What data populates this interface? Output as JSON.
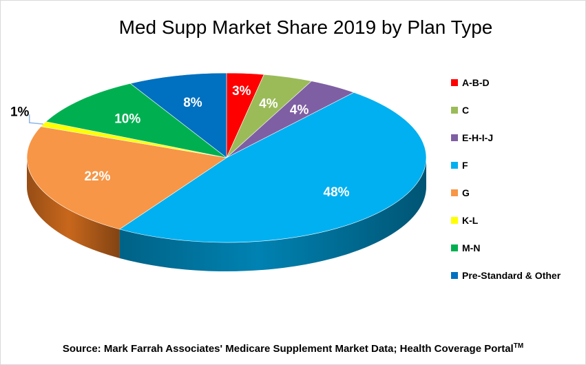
{
  "chart_data": {
    "type": "pie",
    "style": "3d",
    "title": "Med Supp Market Share 2019 by Plan Type",
    "categories": [
      "A-B-D",
      "C",
      "E-H-I-J",
      "F",
      "G",
      "K-L",
      "M-N",
      "Pre-Standard & Other"
    ],
    "values": [
      3,
      4,
      4,
      48,
      22,
      1,
      10,
      8
    ],
    "data_labels": [
      "3%",
      "4%",
      "4%",
      "48%",
      "22%",
      "1%",
      "10%",
      "8%"
    ],
    "colors": [
      "#ff0000",
      "#9bbb59",
      "#7f5fa3",
      "#00b0f0",
      "#f79646",
      "#ffff00",
      "#00b050",
      "#0070c0"
    ],
    "side_colors": [
      "#b00000",
      "#6e8a3a",
      "#55396e",
      "#0082b2",
      "#c8671c",
      "#c8c800",
      "#007a38",
      "#004e8c"
    ],
    "label_colors": [
      "#ffffff",
      "#ffffff",
      "#ffffff",
      "#ffffff",
      "#ffffff",
      "#000000",
      "#ffffff",
      "#ffffff"
    ],
    "legend_position": "right"
  },
  "source": {
    "text": "Source:  Mark Farrah Associates' Medicare Supplement Market Data; Health Coverage Portal",
    "superscript": "TM"
  }
}
